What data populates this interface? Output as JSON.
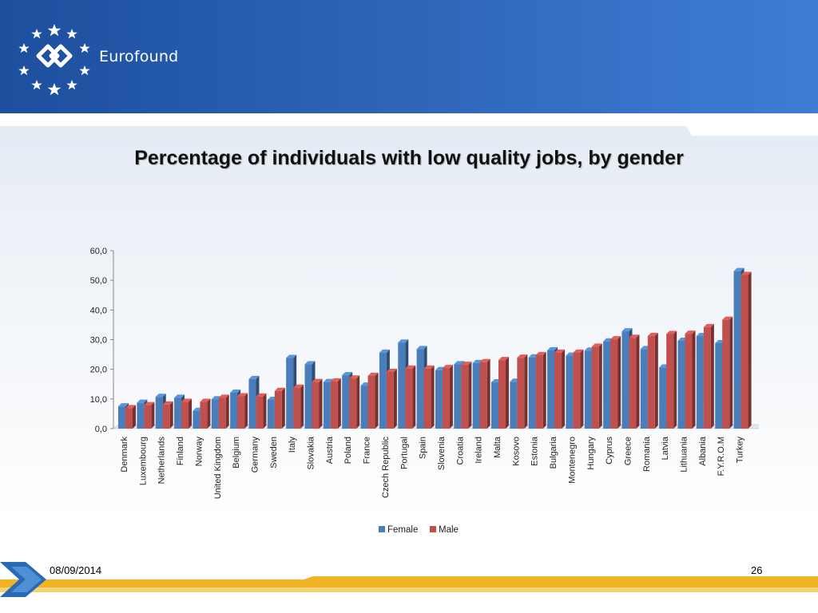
{
  "brand": {
    "name": "Eurofound"
  },
  "slide": {
    "title": "Percentage of individuals with low quality jobs, by gender",
    "date": "08/09/2014",
    "page_number": "26"
  },
  "colors": {
    "header_dark": "#1c4f9e",
    "header_light": "#3d7dd6",
    "female": "#4a7ebb",
    "male": "#c0504d",
    "footer_gold": "#f0b323",
    "footer_arrow": "#2a6ab5"
  },
  "chart_data": {
    "type": "bar",
    "title": "",
    "xlabel": "",
    "ylabel": "",
    "ylim": [
      0,
      60
    ],
    "yticks": [
      "0,0",
      "10,0",
      "20,0",
      "30,0",
      "40,0",
      "50,0",
      "60,0"
    ],
    "grid": false,
    "legend_position": "bottom",
    "categories": [
      "Denmark",
      "Luxembourg",
      "Netherlands",
      "Finland",
      "Norway",
      "United Kingdom",
      "Belgium",
      "Germany",
      "Sweden",
      "Italy",
      "Slovakia",
      "Austria",
      "Poland",
      "France",
      "Czech Republic",
      "Portugal",
      "Spain",
      "Slovenia",
      "Croatia",
      "Ireland",
      "Malta",
      "Kosovo",
      "Estonia",
      "Bulgaria",
      "Montenegro",
      "Hungary",
      "Cyprus",
      "Greece",
      "Romania",
      "Latvia",
      "Lithuania",
      "Albania",
      "F.Y.R.O.M",
      "Turkey"
    ],
    "series": [
      {
        "name": "Female",
        "color": "#4a7ebb",
        "values": [
          7.5,
          8.7,
          10.7,
          10.4,
          6.0,
          9.9,
          12.1,
          16.7,
          9.7,
          23.8,
          21.7,
          15.7,
          18.0,
          14.5,
          25.6,
          29.0,
          26.8,
          19.7,
          21.7,
          22.1,
          15.6,
          15.8,
          24.0,
          26.4,
          24.6,
          26.3,
          29.4,
          32.8,
          26.8,
          20.6,
          29.6,
          31.2,
          28.8,
          53.1
        ]
      },
      {
        "name": "Male",
        "color": "#c0504d",
        "values": [
          6.9,
          7.9,
          8.1,
          9.0,
          9.0,
          10.4,
          10.9,
          10.8,
          12.7,
          13.8,
          15.7,
          15.9,
          16.9,
          17.8,
          19.1,
          20.2,
          20.2,
          20.4,
          21.5,
          22.4,
          23.1,
          23.9,
          24.8,
          25.6,
          25.6,
          27.6,
          30.1,
          30.6,
          31.2,
          31.9,
          32.0,
          34.2,
          36.7,
          51.8
        ]
      }
    ]
  }
}
